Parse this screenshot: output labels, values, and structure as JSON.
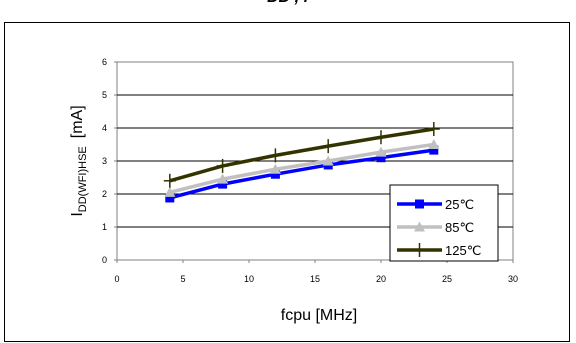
{
  "header": {
    "title_fragment": "DD         ,  f"
  },
  "chart_data": {
    "type": "line",
    "title": "",
    "xlabel": "fcpu [MHz]",
    "ylabel_main": "I",
    "ylabel_sub": "DD(WFI)HSE",
    "ylabel_unit": "[mA]",
    "xlim": [
      0,
      30
    ],
    "ylim": [
      0,
      6
    ],
    "xticks": [
      0,
      5,
      10,
      15,
      20,
      25,
      30
    ],
    "yticks": [
      0,
      1,
      2,
      3,
      4,
      5,
      6
    ],
    "grid": "horizontal",
    "legend_position": "right",
    "x": [
      4,
      8,
      12,
      16,
      20,
      24
    ],
    "series": [
      {
        "name": "25℃",
        "values": [
          1.88,
          2.3,
          2.6,
          2.88,
          3.1,
          3.33
        ],
        "color": "#0000ff",
        "marker": "square"
      },
      {
        "name": "85℃",
        "values": [
          2.05,
          2.45,
          2.75,
          3.0,
          3.27,
          3.5
        ],
        "color": "#c0c0c0",
        "marker": "triangle"
      },
      {
        "name": "125℃",
        "values": [
          2.4,
          2.85,
          3.17,
          3.45,
          3.72,
          3.97
        ],
        "color": "#333300",
        "marker": "plus"
      }
    ]
  }
}
